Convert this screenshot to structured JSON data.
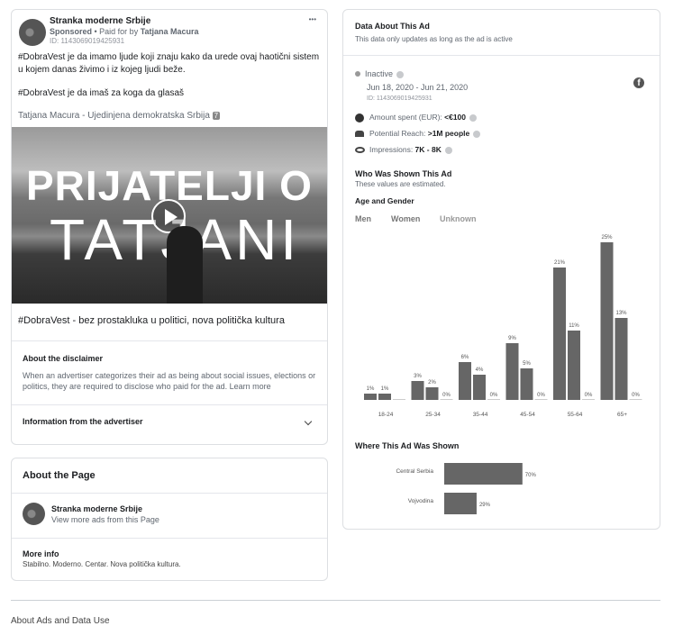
{
  "ad": {
    "page_name": "Stranka moderne Srbije",
    "sponsored": "Sponsored",
    "paid_for_prefix": " • Paid for by ",
    "paid_for": "Tatjana Macura",
    "id": "ID: 1143069019425931",
    "more": "•••",
    "body1": "#DobraVest je da imamo ljude koji znaju kako da urede ovaj haotični sistem u kojem danas živimo i iz kojeg ljudi beže.",
    "body2": "#DobraVest je da imaš za koga da glasaš",
    "tagline": "Tatjana Macura - Ujedinjena demokratska Srbija",
    "tag_badge": "7",
    "video_line1": "PRIJATELJI O",
    "video_line2": "TATJANI",
    "caption": "#DobraVest - bez prostakluka u politici, nova politička kultura"
  },
  "disclaimer": {
    "title": "About the disclaimer",
    "text": "When an advertiser categorizes their ad as being about social issues, elections or politics, they are required to disclose who paid for the ad.",
    "link": "Learn more",
    "advertiser_info": "Information from the advertiser"
  },
  "about_page": {
    "title": "About the Page",
    "name": "Stranka moderne Srbije",
    "link": "View more ads from this Page",
    "more_info_title": "More info",
    "more_info_text": "Stabilno. Moderno. Centar. Nova politička kultura."
  },
  "data_panel": {
    "title": "Data About This Ad",
    "subtitle": "This data only updates as long as the ad is active",
    "status": "Inactive",
    "dates": "Jun 18, 2020 - Jun 21, 2020",
    "id": "ID: 1143069019425931",
    "amount_label": "Amount spent (EUR): ",
    "amount": "<€100",
    "reach_label": "Potential Reach: ",
    "reach": ">1M people",
    "impr_label": "Impressions: ",
    "impr": "7K - 8K",
    "who_title": "Who Was Shown This Ad",
    "who_sub": "These values are estimated.",
    "age_gender": "Age and Gender",
    "tabs": [
      "Men",
      "Women",
      "Unknown"
    ],
    "where_title": "Where This Ad Was Shown"
  },
  "chart_data": [
    {
      "type": "bar",
      "categories": [
        "18-24",
        "25-34",
        "35-44",
        "45-54",
        "55-64",
        "65+"
      ],
      "series": [
        {
          "name": "Men",
          "values": [
            1,
            3,
            6,
            9,
            21,
            25
          ]
        },
        {
          "name": "Women",
          "values": [
            1,
            2,
            4,
            5,
            11,
            13
          ]
        },
        {
          "name": "Unknown",
          "values": [
            null,
            0,
            0,
            0,
            0,
            0
          ]
        }
      ],
      "unit": "%",
      "color": "#666666"
    },
    {
      "type": "bar",
      "orientation": "horizontal",
      "categories": [
        "Central Serbia",
        "Vojvodina"
      ],
      "values": [
        70,
        29
      ],
      "unit": "%",
      "color": "#666666"
    }
  ],
  "footer": {
    "link": "About Ads and Data Use"
  }
}
